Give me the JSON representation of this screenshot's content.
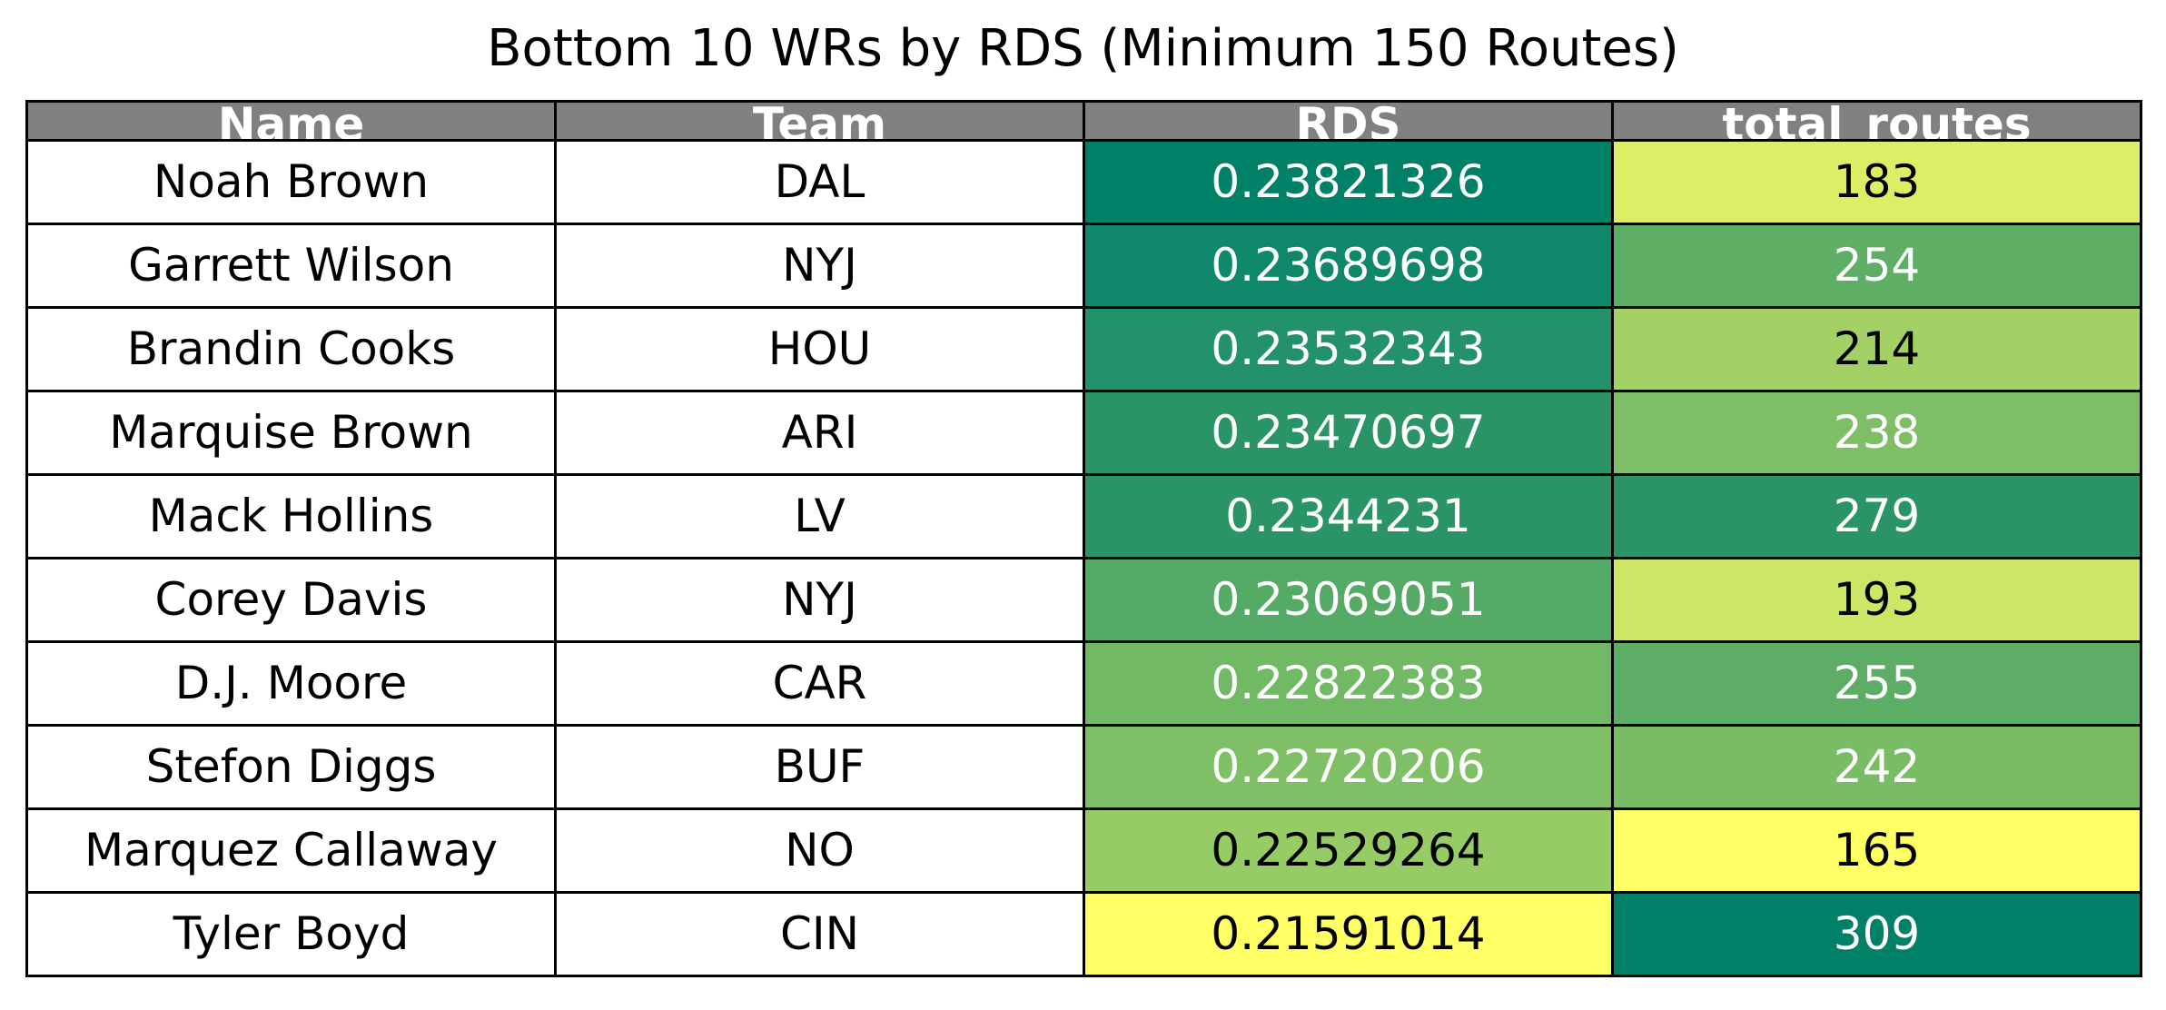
{
  "chart_data": {
    "type": "table",
    "title": "Bottom 10 WRs by RDS (Minimum 150 Routes)",
    "columns": [
      "Name",
      "Team",
      "RDS",
      "total_routes"
    ],
    "rows": [
      [
        "Noah Brown",
        "DAL",
        "0.23821326",
        "183"
      ],
      [
        "Garrett Wilson",
        "NYJ",
        "0.23689698",
        "254"
      ],
      [
        "Brandin Cooks",
        "HOU",
        "0.23532343",
        "214"
      ],
      [
        "Marquise Brown",
        "ARI",
        "0.23470697",
        "238"
      ],
      [
        "Mack Hollins",
        "LV",
        "0.2344231",
        "279"
      ],
      [
        "Corey Davis",
        "NYJ",
        "0.23069051",
        "193"
      ],
      [
        "D.J. Moore",
        "CAR",
        "0.22822383",
        "255"
      ],
      [
        "Stefon Diggs",
        "BUF",
        "0.22720206",
        "242"
      ],
      [
        "Marquez Callaway",
        "NO",
        "0.22529264",
        "165"
      ],
      [
        "Tyler Boyd",
        "CIN",
        "0.21591014",
        "309"
      ]
    ],
    "cell_colors": {
      "RDS": [
        "#008066",
        "#0e876a",
        "#239169",
        "#2a9466",
        "#2a9466",
        "#55aa66",
        "#72b966",
        "#7fc066",
        "#96cb66",
        "#ffff66"
      ],
      "total_routes": [
        "#dcee66",
        "#5fae66",
        "#a3d166",
        "#7dbe66",
        "#2a9466",
        "#cce666",
        "#5dad66",
        "#79bc66",
        "#ffff66",
        "#008066"
      ]
    },
    "cell_text_colors": {
      "RDS": [
        "#ffffff",
        "#ffffff",
        "#ffffff",
        "#ffffff",
        "#ffffff",
        "#ffffff",
        "#ffffff",
        "#ffffff",
        "#000000",
        "#000000"
      ],
      "total_routes": [
        "#000000",
        "#ffffff",
        "#000000",
        "#ffffff",
        "#ffffff",
        "#000000",
        "#ffffff",
        "#ffffff",
        "#000000",
        "#ffffff"
      ]
    },
    "header_color": "#808080",
    "header_text_color": "#ffffff"
  }
}
